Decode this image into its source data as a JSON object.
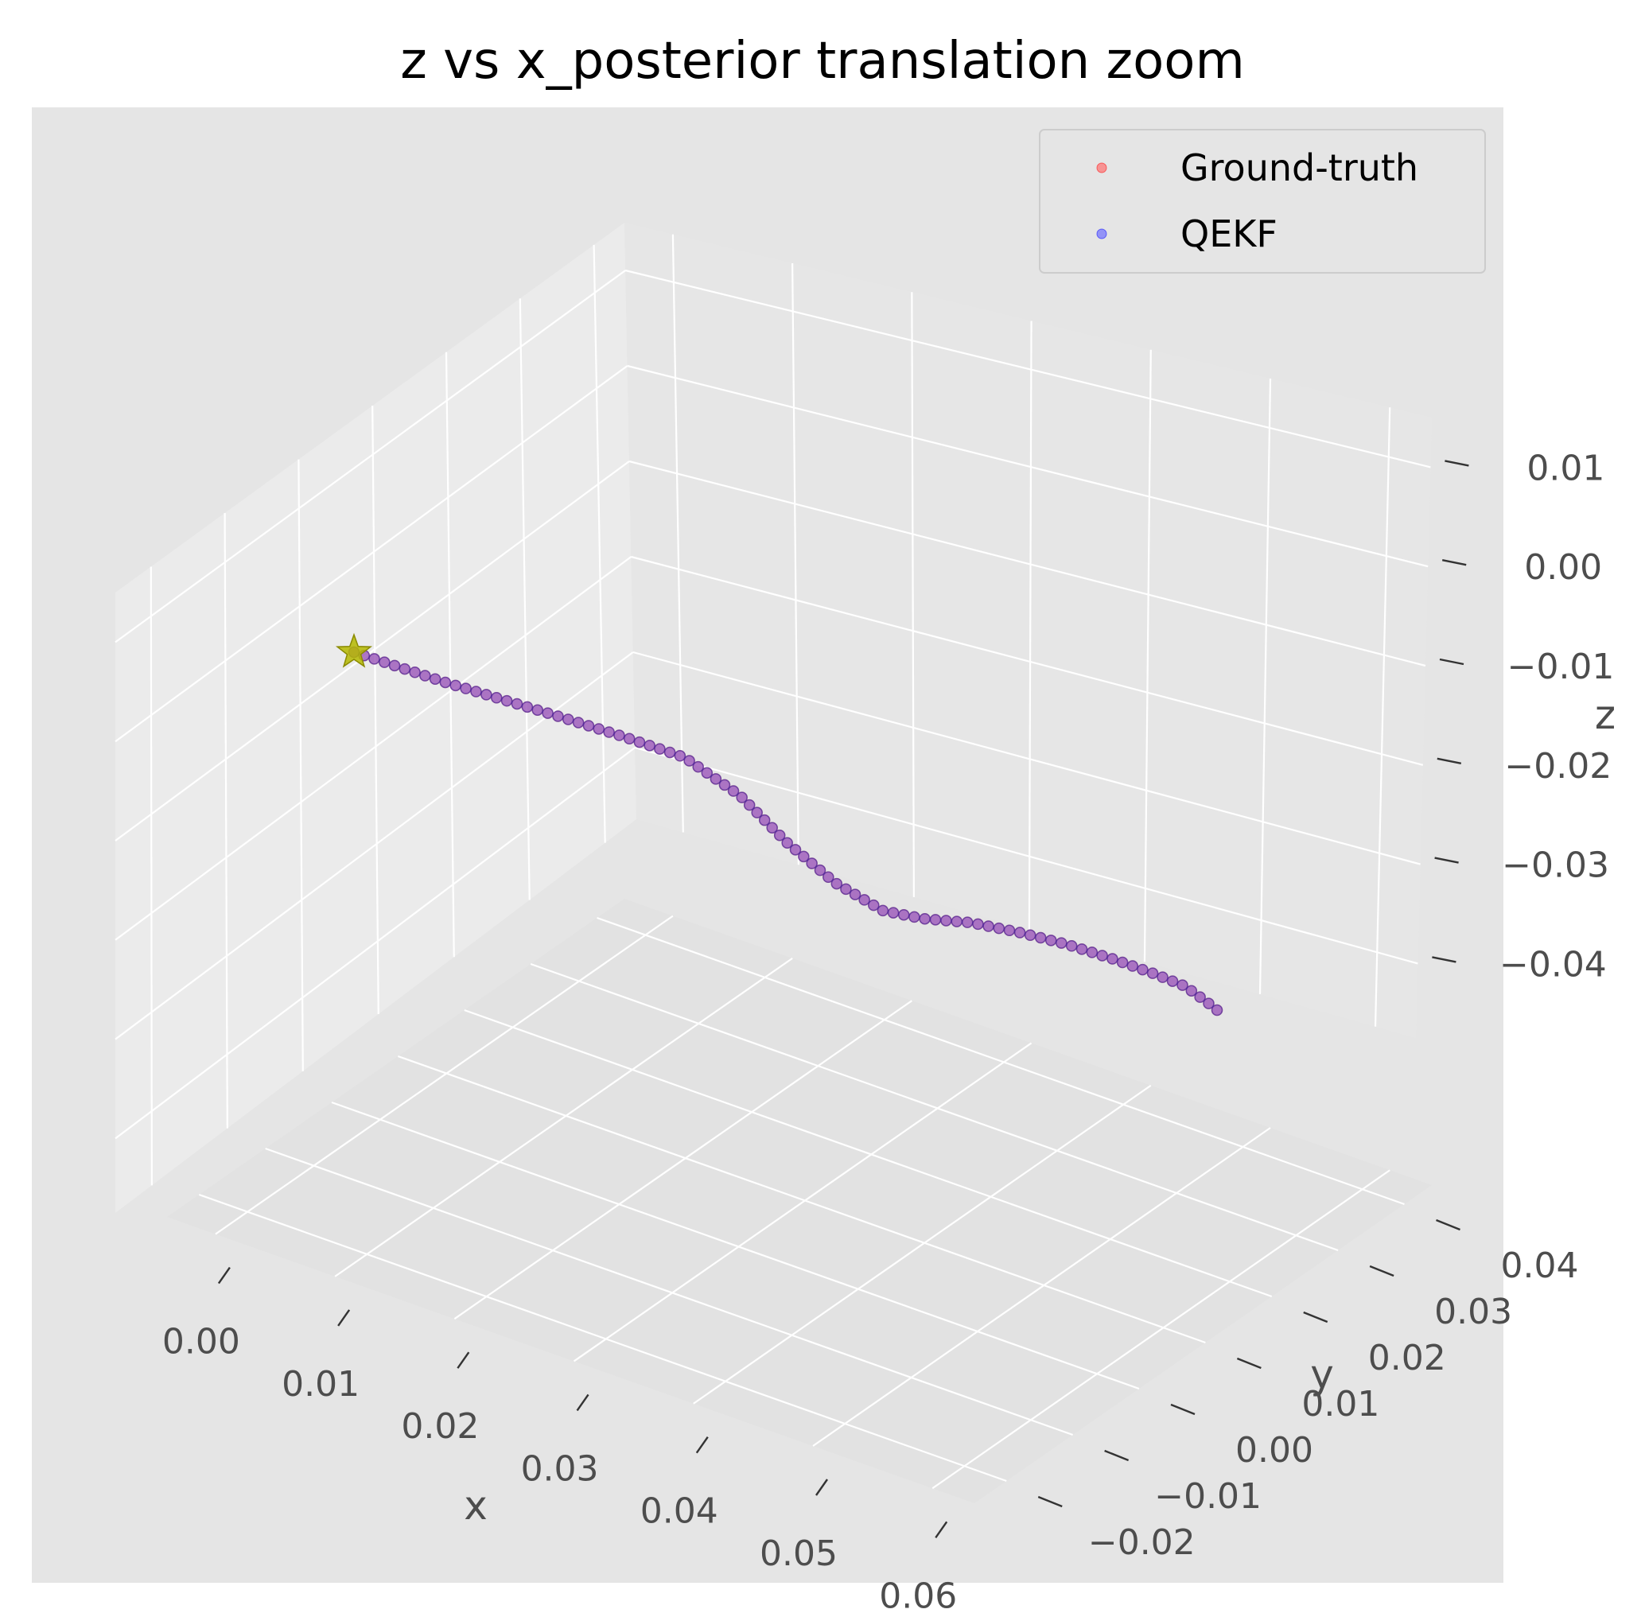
{
  "chart_data": {
    "type": "scatter",
    "projection": "3d",
    "title": "z vs x_posterior translation zoom",
    "xlabel": "x",
    "ylabel": "y",
    "zlabel": "z",
    "xlim": [
      0.0,
      0.065
    ],
    "ylim": [
      -0.025,
      0.048
    ],
    "zlim": [
      -0.05,
      0.018
    ],
    "grid": true,
    "legend_position": "top-right",
    "x_ticks": [
      "0.00",
      "0.01",
      "0.02",
      "0.03",
      "0.04",
      "0.05",
      "0.06"
    ],
    "y_ticks": [
      "−0.02",
      "−0.01",
      "0.00",
      "0.01",
      "0.02",
      "0.03",
      "0.04"
    ],
    "z_ticks": [
      "−0.04",
      "−0.03",
      "−0.02",
      "−0.01",
      "0.00",
      "0.01"
    ],
    "series": [
      {
        "name": "Ground-truth",
        "color": "#ff0000"
      },
      {
        "name": "QEKF",
        "color": "#0000ff"
      }
    ],
    "trajectory": {
      "x": [
        0.0,
        0.0,
        0.0,
        0.0,
        0.0,
        0.0,
        0.0,
        0.0,
        0.0,
        0.0
      ],
      "y": [
        0.0,
        0.0,
        0.0,
        0.0,
        0.0,
        0.0,
        0.0,
        0.0,
        0.0,
        0.0
      ],
      "z": [
        0.0,
        0.0,
        0.0,
        0.0,
        0.0,
        0.0,
        0.0,
        0.0,
        0.0,
        0.0
      ]
    },
    "start_marker": {
      "shape": "star",
      "color": "#b5b800"
    }
  }
}
